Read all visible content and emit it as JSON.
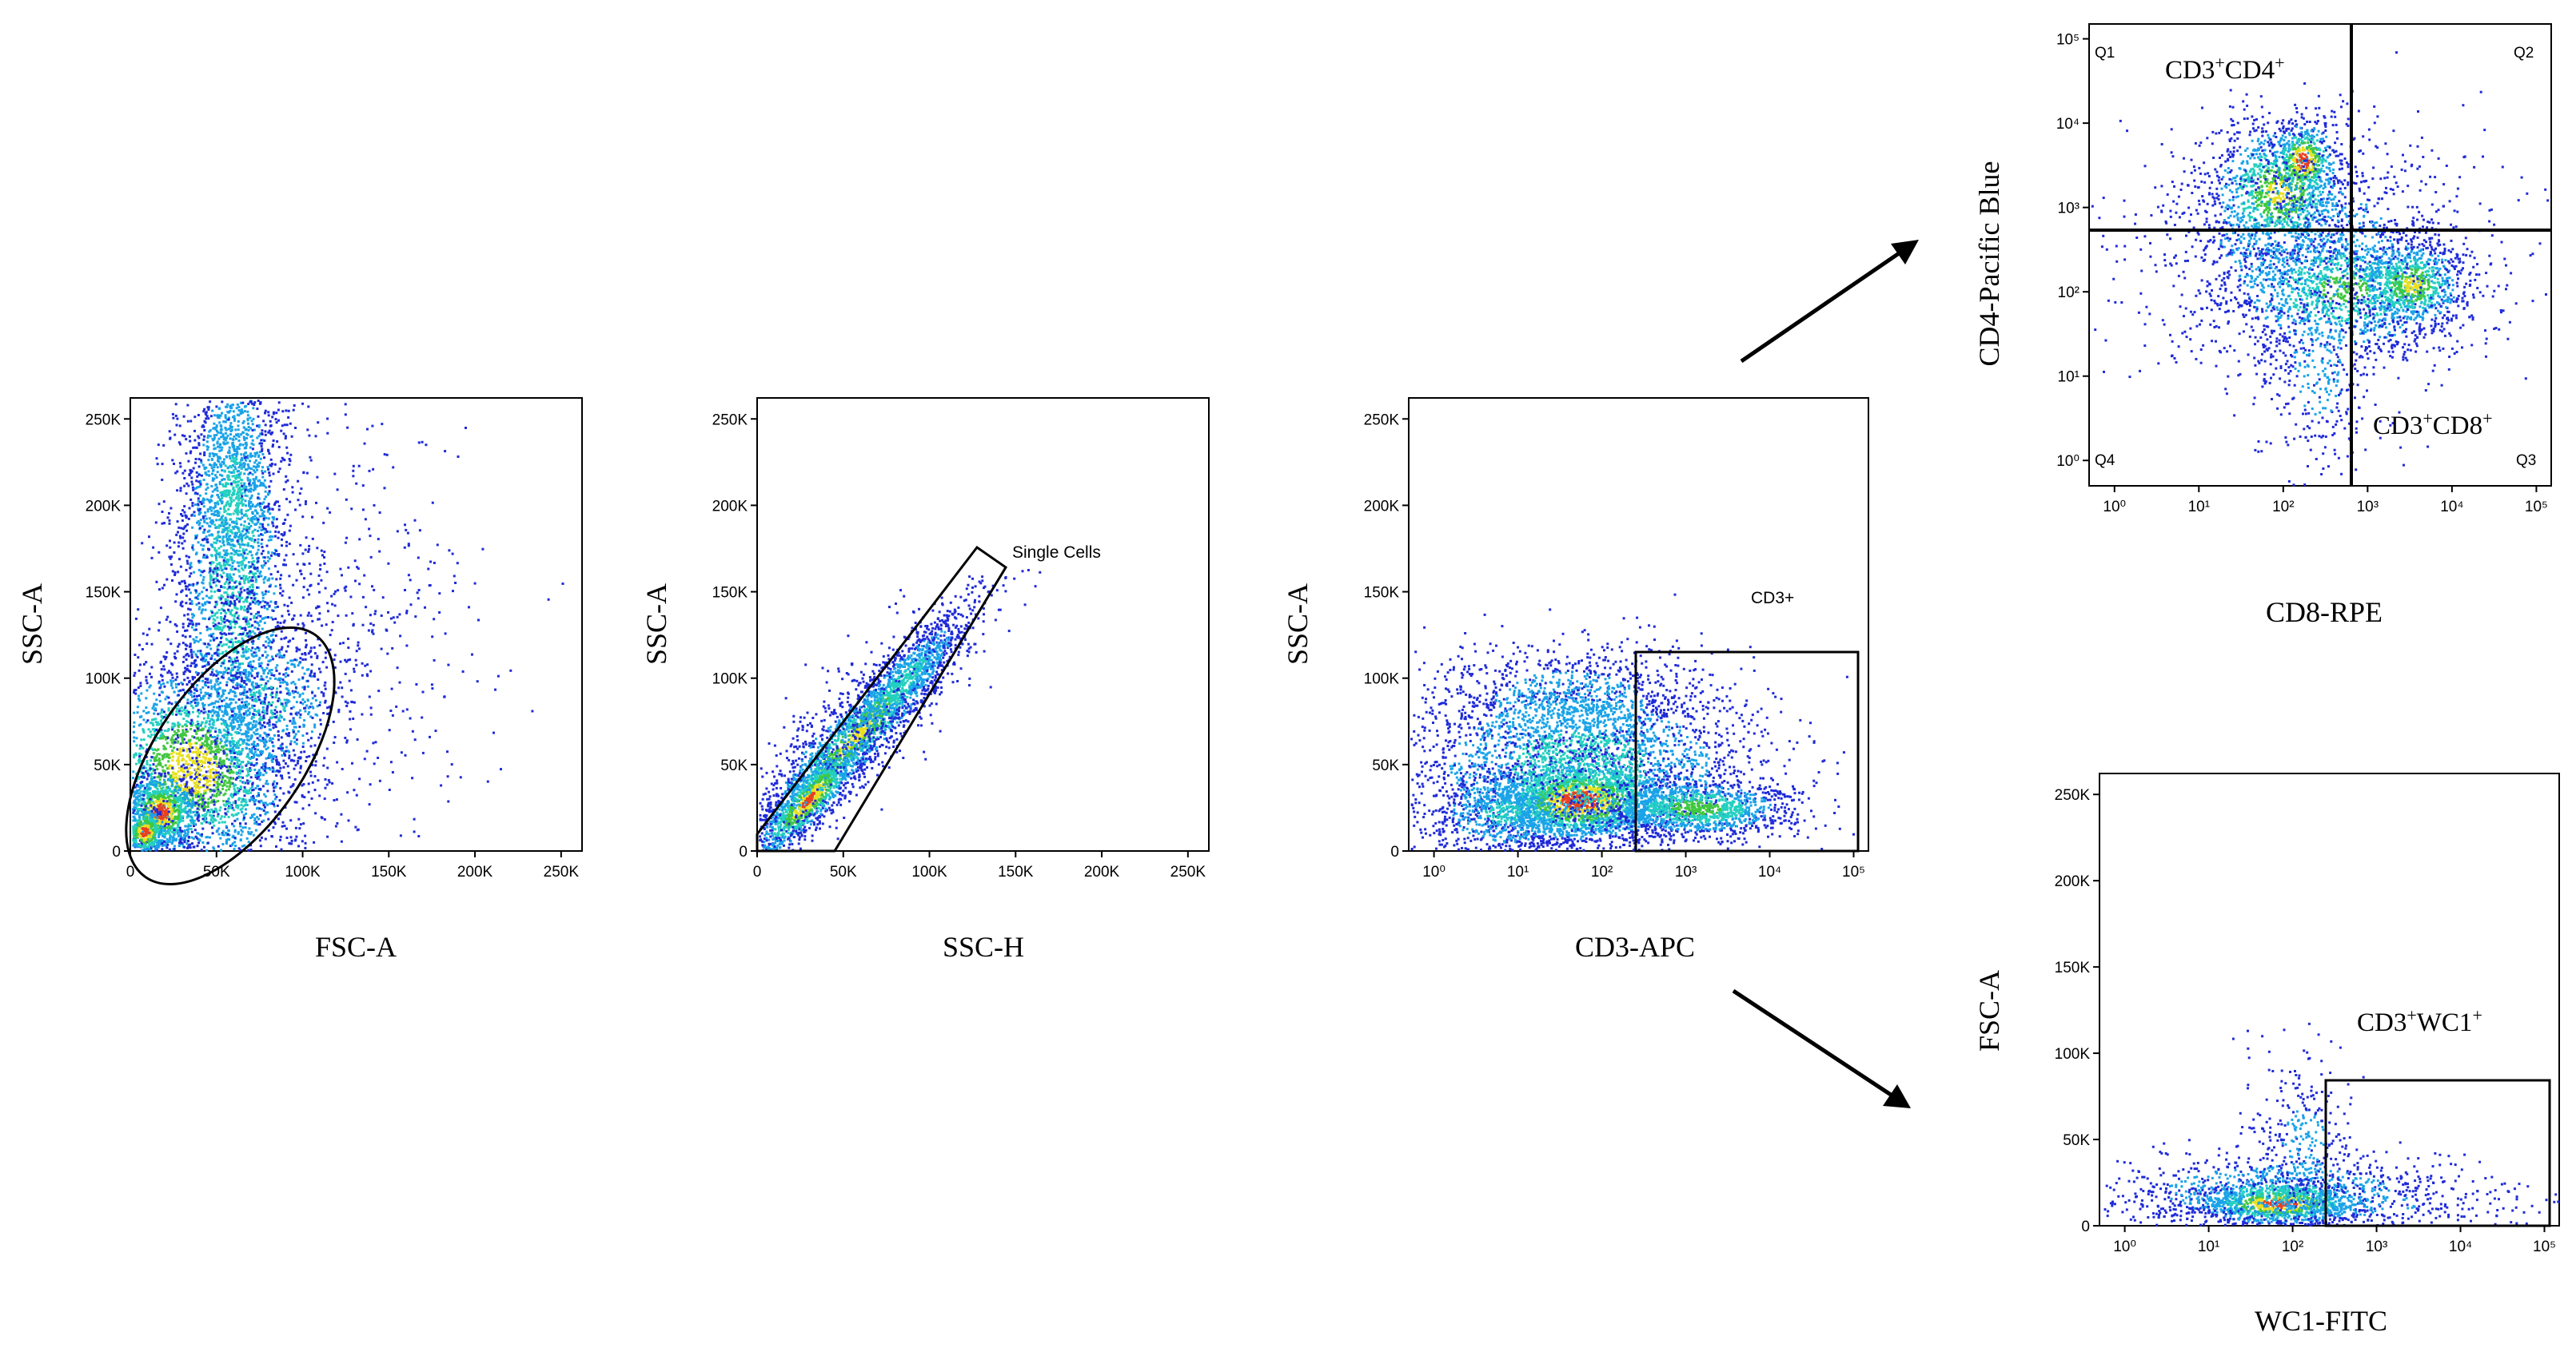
{
  "colors": {
    "density_low": "#1f2bd8",
    "density_mid": "#1aa3e8",
    "density_midhigh": "#23d0c0",
    "density_high": "#40c840",
    "density_peak": "#e8e020",
    "density_max": "#e84020",
    "gate": "#000000"
  },
  "chart_data": [
    {
      "id": "p1",
      "type": "scatter",
      "subtype": "flow-cytometry-density",
      "xlabel": "FSC-A",
      "ylabel": "SSC-A",
      "xscale": "linear",
      "yscale": "linear",
      "xlim": [
        0,
        262144
      ],
      "ylim": [
        0,
        262144
      ],
      "xticks": [
        0,
        50000,
        100000,
        150000,
        200000,
        250000
      ],
      "xtick_labels": [
        "0",
        "50K",
        "100K",
        "150K",
        "200K",
        "250K"
      ],
      "yticks": [
        0,
        50000,
        100000,
        150000,
        200000,
        250000
      ],
      "ytick_labels": [
        "0",
        "50K",
        "100K",
        "150K",
        "200K",
        "250K"
      ],
      "gates": [
        {
          "shape": "ellipse",
          "label": "",
          "center": [
            57000,
            55000
          ],
          "semi_axes": [
            80000,
            40000
          ],
          "angle_deg": 55
        }
      ]
    },
    {
      "id": "p2",
      "type": "scatter",
      "subtype": "flow-cytometry-density",
      "xlabel": "SSC-H",
      "ylabel": "SSC-A",
      "xscale": "linear",
      "yscale": "linear",
      "xlim": [
        0,
        262144
      ],
      "ylim": [
        0,
        262144
      ],
      "xticks": [
        0,
        50000,
        100000,
        150000,
        200000,
        250000
      ],
      "xtick_labels": [
        "0",
        "50K",
        "100K",
        "150K",
        "200K",
        "250K"
      ],
      "yticks": [
        0,
        50000,
        100000,
        150000,
        200000,
        250000
      ],
      "ytick_labels": [
        "0",
        "50K",
        "100K",
        "150K",
        "200K",
        "250K"
      ],
      "gates": [
        {
          "shape": "polygon",
          "label": "Single Cells",
          "vertices": [
            [
              0,
              0
            ],
            [
              45000,
              0
            ],
            [
              145000,
              165000
            ],
            [
              128000,
              178000
            ],
            [
              0,
              10000
            ]
          ]
        }
      ]
    },
    {
      "id": "p3",
      "type": "scatter",
      "subtype": "flow-cytometry-density",
      "xlabel": "CD3-APC",
      "ylabel": "SSC-A",
      "xscale": "log",
      "yscale": "linear",
      "xlim": [
        0.5,
        150000
      ],
      "ylim": [
        0,
        262144
      ],
      "xticks": [
        1,
        10,
        100,
        1000,
        10000,
        100000
      ],
      "xtick_labels": [
        "10⁰",
        "10¹",
        "10²",
        "10³",
        "10⁴",
        "10⁵"
      ],
      "yticks": [
        0,
        50000,
        100000,
        150000,
        200000,
        250000
      ],
      "ytick_labels": [
        "0",
        "50K",
        "100K",
        "150K",
        "200K",
        "250K"
      ],
      "gates": [
        {
          "shape": "rect",
          "label": "CD3+",
          "x": [
            400,
            100000
          ],
          "y": [
            0,
            115000
          ]
        }
      ]
    },
    {
      "id": "p4",
      "type": "scatter",
      "subtype": "flow-cytometry-density",
      "xlabel": "CD8-RPE",
      "ylabel": "CD4-Pacific Blue",
      "xscale": "log",
      "yscale": "log",
      "xlim": [
        0.5,
        150000
      ],
      "ylim": [
        0.5,
        150000
      ],
      "xticks": [
        1,
        10,
        100,
        1000,
        10000,
        100000
      ],
      "xtick_labels": [
        "10⁰",
        "10¹",
        "10²",
        "10³",
        "10⁴",
        "10⁵"
      ],
      "yticks": [
        1,
        10,
        100,
        1000,
        10000,
        100000
      ],
      "ytick_labels": [
        "10⁰",
        "10¹",
        "10²",
        "10³",
        "10⁴",
        "10⁵"
      ],
      "quadrant_split": {
        "x": 900,
        "y": 1000
      },
      "quadrant_labels": [
        "Q1",
        "Q2",
        "Q3",
        "Q4"
      ],
      "annotations": [
        {
          "base": "CD3",
          "sup1": "+",
          "mid": "CD4",
          "sup2": "+"
        },
        {
          "base": "CD3",
          "sup1": "+",
          "mid": "CD8",
          "sup2": "+"
        }
      ]
    },
    {
      "id": "p5",
      "type": "scatter",
      "subtype": "flow-cytometry-density",
      "xlabel": "WC1-FITC",
      "ylabel": "FSC-A",
      "xscale": "log",
      "yscale": "linear",
      "xlim": [
        0.5,
        150000
      ],
      "ylim": [
        0,
        262144
      ],
      "xticks": [
        1,
        10,
        100,
        1000,
        10000,
        100000
      ],
      "xtick_labels": [
        "10⁰",
        "10¹",
        "10²",
        "10³",
        "10⁴",
        "10⁵"
      ],
      "yticks": [
        0,
        50000,
        100000,
        150000,
        200000,
        250000
      ],
      "ytick_labels": [
        "0",
        "50K",
        "100K",
        "150K",
        "200K",
        "250K"
      ],
      "gates": [
        {
          "shape": "rect",
          "label": "",
          "x": [
            400,
            150000
          ],
          "y": [
            0,
            85000
          ]
        }
      ],
      "annotations": [
        {
          "base": "CD3",
          "sup1": "+",
          "mid": "WC1",
          "sup2": "+"
        }
      ]
    }
  ]
}
